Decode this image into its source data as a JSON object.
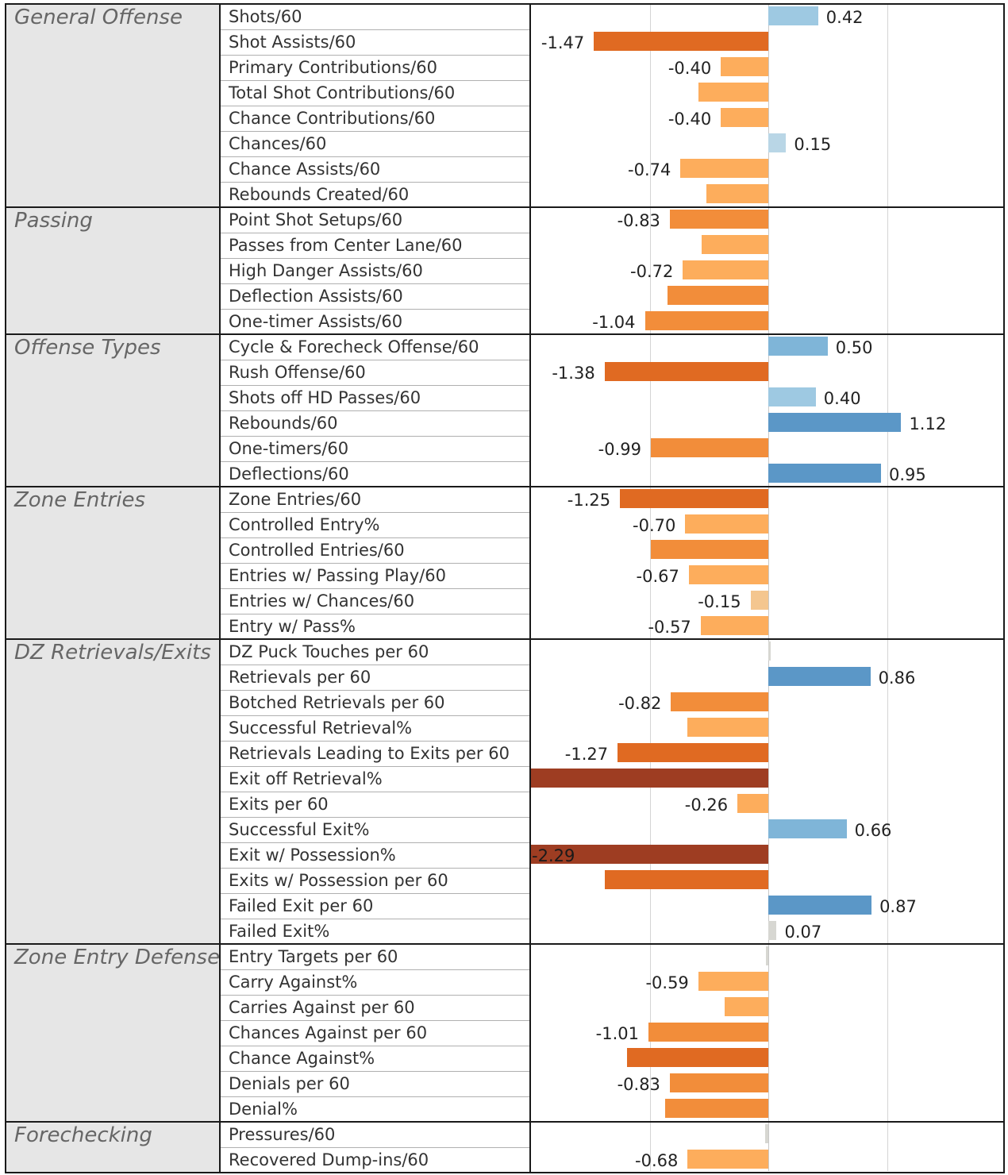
{
  "chart_data": {
    "type": "bar",
    "orientation": "horizontal",
    "xlim": [
      -2.29,
      2.0
    ],
    "gridlines_at": [
      -1,
      0,
      1
    ],
    "grid": true,
    "legend": "none",
    "colors": {
      "pos_light": "#9ec9e2",
      "pos_mid": "#7fb5d8",
      "pos_dark": "#5b97c7",
      "pos_faint": "#b9d6e6",
      "neutral": "#d7d7d2",
      "neg_faint": "#f4c68f",
      "neg_light": "#fdad5c",
      "neg_mid": "#f28d3a",
      "neg_strong": "#e06a22",
      "neg_dark": "#9e3d22"
    },
    "groups": [
      {
        "name": "General Offense",
        "rows": [
          {
            "label": "Shots/60",
            "value": 0.42,
            "text": "0.42"
          },
          {
            "label": "Shot Assists/60",
            "value": -1.47,
            "text": "-1.47"
          },
          {
            "label": "Primary Contributions/60",
            "value": -0.4,
            "text": "-0.40"
          },
          {
            "label": "Total Shot Contributions/60",
            "value": -0.59,
            "text": ""
          },
          {
            "label": "Chance Contributions/60",
            "value": -0.4,
            "text": "-0.40"
          },
          {
            "label": "Chances/60",
            "value": 0.15,
            "text": "0.15"
          },
          {
            "label": "Chance Assists/60",
            "value": -0.74,
            "text": "-0.74"
          },
          {
            "label": "Rebounds Created/60",
            "value": -0.52,
            "text": ""
          }
        ]
      },
      {
        "name": "Passing",
        "rows": [
          {
            "label": "Point Shot Setups/60",
            "value": -0.83,
            "text": "-0.83"
          },
          {
            "label": "Passes from Center Lane/60",
            "value": -0.56,
            "text": ""
          },
          {
            "label": "High Danger Assists/60",
            "value": -0.72,
            "text": "-0.72"
          },
          {
            "label": "Deflection Assists/60",
            "value": -0.85,
            "text": ""
          },
          {
            "label": "One-timer Assists/60",
            "value": -1.04,
            "text": "-1.04"
          }
        ]
      },
      {
        "name": "Offense Types",
        "rows": [
          {
            "label": "Cycle & Forecheck Offense/60",
            "value": 0.5,
            "text": "0.50"
          },
          {
            "label": "Rush Offense/60",
            "value": -1.38,
            "text": "-1.38"
          },
          {
            "label": "Shots off HD Passes/60",
            "value": 0.4,
            "text": "0.40"
          },
          {
            "label": "Rebounds/60",
            "value": 1.12,
            "text": "1.12"
          },
          {
            "label": "One-timers/60",
            "value": -0.99,
            "text": "-0.99"
          },
          {
            "label": "Deflections/60",
            "value": 0.95,
            "text": "0.95"
          }
        ]
      },
      {
        "name": "Zone Entries",
        "rows": [
          {
            "label": "Zone Entries/60",
            "value": -1.25,
            "text": "-1.25"
          },
          {
            "label": "Controlled Entry%",
            "value": -0.7,
            "text": "-0.70"
          },
          {
            "label": "Controlled Entries/60",
            "value": -0.99,
            "text": ""
          },
          {
            "label": "Entries w/ Passing Play/60",
            "value": -0.67,
            "text": "-0.67"
          },
          {
            "label": "Entries w/ Chances/60",
            "value": -0.15,
            "text": "-0.15"
          },
          {
            "label": "Entry w/ Pass%",
            "value": -0.57,
            "text": "-0.57"
          }
        ]
      },
      {
        "name": "DZ Retrievals/Exits",
        "rows": [
          {
            "label": "DZ Puck Touches per 60",
            "value": 0.02,
            "text": ""
          },
          {
            "label": "Retrievals per 60",
            "value": 0.86,
            "text": "0.86"
          },
          {
            "label": "Botched Retrievals per 60",
            "value": -0.82,
            "text": "-0.82"
          },
          {
            "label": "Successful Retrieval%",
            "value": -0.68,
            "text": ""
          },
          {
            "label": "Retrievals Leading to Exits per 60",
            "value": -1.27,
            "text": "-1.27"
          },
          {
            "label": "Exit off Retrieval%",
            "value": -2.0,
            "text": ""
          },
          {
            "label": "Exits per 60",
            "value": -0.26,
            "text": "-0.26"
          },
          {
            "label": "Successful Exit%",
            "value": 0.66,
            "text": "0.66"
          },
          {
            "label": "Exit w/ Possession%",
            "value": -2.29,
            "text": "-2.29"
          },
          {
            "label": "Exits w/ Possession per 60",
            "value": -1.38,
            "text": ""
          },
          {
            "label": "Failed Exit per 60",
            "value": 0.87,
            "text": "0.87"
          },
          {
            "label": "Failed Exit%",
            "value": 0.07,
            "text": "0.07"
          }
        ]
      },
      {
        "name": "Zone Entry Defense",
        "rows": [
          {
            "label": "Entry Targets per 60",
            "value": -0.02,
            "text": ""
          },
          {
            "label": "Carry Against%",
            "value": -0.59,
            "text": "-0.59"
          },
          {
            "label": "Carries Against per 60",
            "value": -0.37,
            "text": ""
          },
          {
            "label": "Chances Against per 60",
            "value": -1.01,
            "text": "-1.01"
          },
          {
            "label": "Chance Against%",
            "value": -1.19,
            "text": ""
          },
          {
            "label": "Denials per 60",
            "value": -0.83,
            "text": "-0.83"
          },
          {
            "label": "Denial%",
            "value": -0.87,
            "text": ""
          }
        ]
      },
      {
        "name": "Forechecking",
        "rows": [
          {
            "label": "Pressures/60",
            "value": -0.03,
            "text": ""
          },
          {
            "label": "Recovered Dump-ins/60",
            "value": -0.68,
            "text": "-0.68"
          }
        ]
      }
    ]
  }
}
